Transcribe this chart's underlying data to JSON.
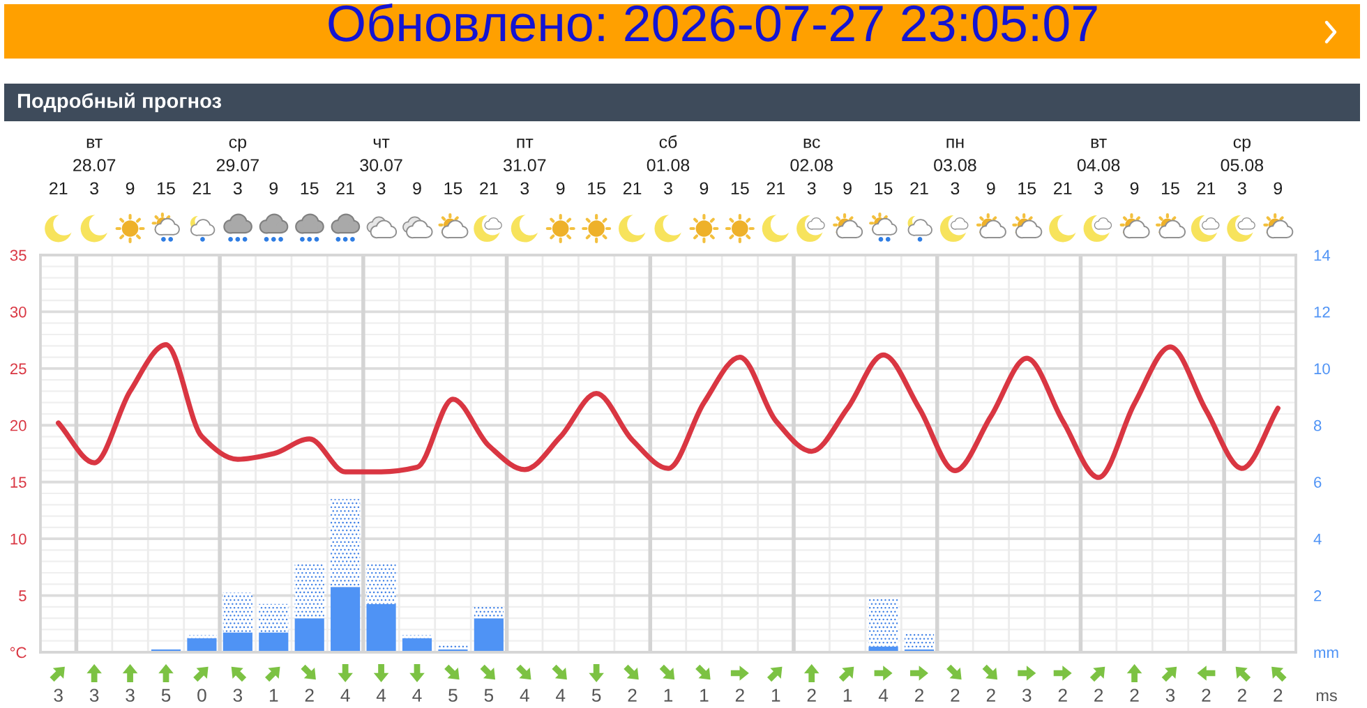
{
  "chart_data": [
    {
      "type": "line",
      "title": "Обновлено: 2026-07-27 23:05:07",
      "subtitle": "Подробный прогноз",
      "categories": [
        "21",
        "вт\n28.07\n3",
        "9",
        "15",
        "21",
        "ср\n29.07\n3",
        "9",
        "15",
        "21",
        "чт\n30.07\n3",
        "9",
        "15",
        "21",
        "пт\n31.07\n3",
        "9",
        "15",
        "21",
        "сб\n01.08\n3",
        "9",
        "15",
        "21",
        "вс\n02.08\n3",
        "9",
        "15",
        "21",
        "пн\n03.08\n3",
        "9",
        "15",
        "21",
        "вт\n04.08\n3",
        "9",
        "15",
        "21",
        "ср\n05.08\n3",
        "9"
      ],
      "series": [
        {
          "type": "line",
          "color": "#d93642",
          "values": [
            20.2,
            16.7,
            23.0,
            27.1,
            19.0,
            17.0,
            17.5,
            18.8,
            15.9,
            15.9,
            16.3,
            22.3,
            18.2,
            16.1,
            19.0,
            22.8,
            18.7,
            16.2,
            22.0,
            26.0,
            20.4,
            17.7,
            21.5,
            26.2,
            21.5,
            16.0,
            20.8,
            25.9,
            20.4,
            15.4,
            21.9,
            26.9,
            21.3,
            16.2,
            21.5
          ]
        },
        {
          "type": "bar",
          "axis": "y2",
          "color": "#4f93f5",
          "values": [
            0,
            0,
            0,
            0.1,
            0.5,
            0.7,
            0.7,
            1.2,
            2.3,
            1.7,
            0.5,
            0.1,
            1.2,
            0,
            0,
            0,
            0,
            0,
            0,
            0,
            0,
            0,
            0,
            0.2,
            0.1,
            0,
            0,
            0,
            0,
            0,
            0,
            0,
            0,
            0,
            0
          ]
        },
        {
          "type": "bar",
          "axis": "y2",
          "color": "#3d7fe6",
          "line_style": "dotted",
          "values": [
            0,
            0,
            0,
            0,
            0.1,
            1.4,
            1.0,
            1.9,
            3.1,
            1.4,
            0.1,
            0.2,
            0.4,
            0,
            0,
            0,
            0,
            0,
            0,
            0,
            0,
            0,
            0,
            1.7,
            0.6,
            0,
            0,
            0,
            0,
            0,
            0,
            0,
            0,
            0,
            0
          ]
        }
      ],
      "stacked": true,
      "ylim": [
        0,
        35
      ],
      "yticks": [
        {
          "value": 0,
          "label": "°C"
        },
        5,
        10,
        15,
        20,
        25,
        30,
        35
      ],
      "y2lim": [
        0,
        14
      ],
      "y2ticks": [
        {
          "value": 0,
          "label": "mm"
        },
        2,
        4,
        6,
        8,
        10,
        12,
        14
      ],
      "grid": true
    },
    {
      "type": "other",
      "values": [
        3,
        3,
        3,
        5,
        0,
        3,
        1,
        2,
        4,
        4,
        4,
        5,
        5,
        4,
        4,
        5,
        2,
        1,
        1,
        2,
        1,
        2,
        1,
        4,
        2,
        2,
        2,
        3,
        2,
        2,
        2,
        3,
        2,
        2,
        2
      ],
      "data_labels": true,
      "annotations": [
        "ms"
      ]
    }
  ]
}
